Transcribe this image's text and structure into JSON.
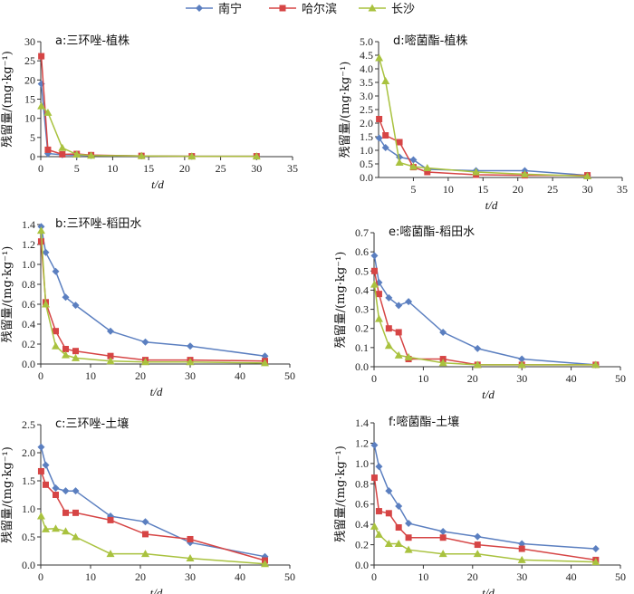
{
  "legend": [
    {
      "name": "南宁",
      "color": "#5b7fc0",
      "marker": "diamond"
    },
    {
      "name": "哈尔滨",
      "color": "#d64545",
      "marker": "square"
    },
    {
      "name": "长沙",
      "color": "#a9c23f",
      "marker": "triangle"
    }
  ],
  "chart_data": [
    {
      "type": "line",
      "title": "a:三环唑-植株",
      "xlabel": "t/d",
      "ylabel": "残留量/(mg·kg⁻¹)",
      "xlim": [
        0,
        35
      ],
      "ylim": [
        0,
        30
      ],
      "xticks": [
        0,
        5,
        10,
        15,
        20,
        25,
        30,
        35
      ],
      "yticks": [
        0,
        5,
        10,
        15,
        20,
        25,
        30
      ],
      "series": [
        {
          "name": "南宁",
          "x": [
            0.08,
            1,
            3,
            5,
            7,
            14,
            21,
            30
          ],
          "y": [
            19,
            0.8,
            0.5,
            0.4,
            0.3,
            0.2,
            0.1,
            0.1
          ]
        },
        {
          "name": "哈尔滨",
          "x": [
            0.08,
            1,
            3,
            5,
            7,
            14,
            21,
            30
          ],
          "y": [
            26.2,
            1.8,
            0.6,
            0.7,
            0.4,
            0.2,
            0.1,
            0.1
          ]
        },
        {
          "name": "长沙",
          "x": [
            0.08,
            1,
            3,
            5,
            7,
            14,
            21,
            30
          ],
          "y": [
            13.2,
            11.5,
            2.3,
            0.6,
            0.3,
            0.2,
            0.1,
            0.1
          ]
        }
      ]
    },
    {
      "type": "line",
      "title": "d:嘧菌酯-植株",
      "xlabel": "t/d",
      "ylabel": "残留量/(mg·kg⁻¹)",
      "xlim": [
        0,
        35
      ],
      "ylim": [
        0,
        5
      ],
      "xticks": [
        5,
        10,
        15,
        20,
        25,
        30,
        35
      ],
      "yticks": [
        0,
        0.5,
        1.0,
        1.5,
        2.0,
        2.5,
        3.0,
        3.5,
        4.0,
        4.5,
        5.0
      ],
      "series": [
        {
          "name": "南宁",
          "x": [
            0.08,
            1,
            3,
            5,
            7,
            14,
            21,
            30
          ],
          "y": [
            1.45,
            1.1,
            0.75,
            0.65,
            0.3,
            0.25,
            0.25,
            0.08
          ]
        },
        {
          "name": "哈尔滨",
          "x": [
            0.08,
            1,
            3,
            5,
            7,
            14,
            21,
            30
          ],
          "y": [
            2.15,
            1.55,
            1.3,
            0.38,
            0.2,
            0.1,
            0.08,
            0.08
          ]
        },
        {
          "name": "长沙",
          "x": [
            0.08,
            1,
            3,
            5,
            7,
            14,
            21,
            30
          ],
          "y": [
            4.4,
            3.55,
            0.55,
            0.4,
            0.35,
            0.2,
            0.12,
            0.05
          ]
        }
      ]
    },
    {
      "type": "line",
      "title": "b:三环唑-稻田水",
      "xlabel": "t/d",
      "ylabel": "残留量/(mg·kg⁻¹)",
      "xlim": [
        0,
        50
      ],
      "ylim": [
        0,
        1.4
      ],
      "xticks": [
        0,
        10,
        20,
        30,
        40,
        50
      ],
      "yticks": [
        0,
        0.2,
        0.4,
        0.6,
        0.8,
        1.0,
        1.2,
        1.4
      ],
      "series": [
        {
          "name": "南宁",
          "x": [
            0.08,
            1,
            3,
            5,
            7,
            14,
            21,
            30,
            45
          ],
          "y": [
            1.38,
            1.12,
            0.93,
            0.67,
            0.59,
            0.33,
            0.22,
            0.18,
            0.08
          ]
        },
        {
          "name": "哈尔滨",
          "x": [
            0.08,
            1,
            3,
            5,
            7,
            14,
            21,
            30,
            45
          ],
          "y": [
            1.23,
            0.62,
            0.33,
            0.15,
            0.13,
            0.08,
            0.04,
            0.04,
            0.03
          ]
        },
        {
          "name": "长沙",
          "x": [
            0.08,
            1,
            3,
            5,
            7,
            14,
            21,
            30,
            45
          ],
          "y": [
            1.34,
            0.6,
            0.18,
            0.09,
            0.06,
            0.03,
            0.02,
            0.02,
            0.01
          ]
        }
      ]
    },
    {
      "type": "line",
      "title": "e:嘧菌酯-稻田水",
      "xlabel": "t/d",
      "ylabel": "残留量/(mg·kg⁻¹)",
      "xlim": [
        0,
        50
      ],
      "ylim": [
        0,
        0.7
      ],
      "xticks": [
        0,
        10,
        20,
        30,
        40,
        50
      ],
      "yticks": [
        0,
        0.1,
        0.2,
        0.3,
        0.4,
        0.5,
        0.6,
        0.7
      ],
      "series": [
        {
          "name": "南宁",
          "x": [
            0.08,
            1,
            3,
            5,
            7,
            14,
            21,
            30,
            45
          ],
          "y": [
            0.58,
            0.44,
            0.36,
            0.32,
            0.34,
            0.18,
            0.095,
            0.04,
            0.01
          ]
        },
        {
          "name": "哈尔滨",
          "x": [
            0.08,
            1,
            3,
            5,
            7,
            14,
            21,
            30,
            45
          ],
          "y": [
            0.5,
            0.38,
            0.2,
            0.18,
            0.04,
            0.04,
            0.01,
            0.01,
            0.01
          ]
        },
        {
          "name": "长沙",
          "x": [
            0.08,
            1,
            3,
            5,
            7,
            14,
            21,
            30,
            45
          ],
          "y": [
            0.43,
            0.25,
            0.11,
            0.06,
            0.05,
            0.02,
            0.01,
            0.01,
            0.01
          ]
        }
      ]
    },
    {
      "type": "line",
      "title": "c:三环唑-土壤",
      "xlabel": "t/d",
      "ylabel": "残留量/(mg·kg⁻¹)",
      "xlim": [
        0,
        50
      ],
      "ylim": [
        0,
        2.5
      ],
      "xticks": [
        0,
        10,
        20,
        30,
        40,
        50
      ],
      "yticks": [
        0,
        0.5,
        1.0,
        1.5,
        2.0,
        2.5
      ],
      "series": [
        {
          "name": "南宁",
          "x": [
            0.08,
            1,
            3,
            5,
            7,
            14,
            21,
            30,
            45
          ],
          "y": [
            2.1,
            1.78,
            1.37,
            1.32,
            1.32,
            0.87,
            0.77,
            0.4,
            0.15
          ]
        },
        {
          "name": "哈尔滨",
          "x": [
            0.08,
            1,
            3,
            5,
            7,
            14,
            21,
            30,
            45
          ],
          "y": [
            1.67,
            1.43,
            1.25,
            0.93,
            0.93,
            0.8,
            0.55,
            0.46,
            0.08
          ]
        },
        {
          "name": "长沙",
          "x": [
            0.08,
            1,
            3,
            5,
            7,
            14,
            21,
            30,
            45
          ],
          "y": [
            0.87,
            0.64,
            0.65,
            0.6,
            0.5,
            0.2,
            0.2,
            0.12,
            0.02
          ]
        }
      ]
    },
    {
      "type": "line",
      "title": "f:嘧菌酯-土壤",
      "xlabel": "t/d",
      "ylabel": "残留量/(mg·kg⁻¹)",
      "xlim": [
        0,
        50
      ],
      "ylim": [
        0,
        1.4
      ],
      "xticks": [
        0,
        10,
        20,
        30,
        40,
        50
      ],
      "yticks": [
        0,
        0.2,
        0.4,
        0.6,
        0.8,
        1.0,
        1.2,
        1.4
      ],
      "series": [
        {
          "name": "南宁",
          "x": [
            0.08,
            1,
            3,
            5,
            7,
            14,
            21,
            30,
            45
          ],
          "y": [
            1.18,
            0.97,
            0.73,
            0.58,
            0.41,
            0.33,
            0.28,
            0.21,
            0.16
          ]
        },
        {
          "name": "哈尔滨",
          "x": [
            0.08,
            1,
            3,
            5,
            7,
            14,
            21,
            30,
            45
          ],
          "y": [
            0.86,
            0.53,
            0.51,
            0.37,
            0.27,
            0.27,
            0.2,
            0.16,
            0.05
          ]
        },
        {
          "name": "长沙",
          "x": [
            0.08,
            1,
            3,
            5,
            7,
            14,
            21,
            30,
            45
          ],
          "y": [
            0.38,
            0.3,
            0.21,
            0.21,
            0.15,
            0.11,
            0.11,
            0.05,
            0.03
          ]
        }
      ]
    }
  ]
}
